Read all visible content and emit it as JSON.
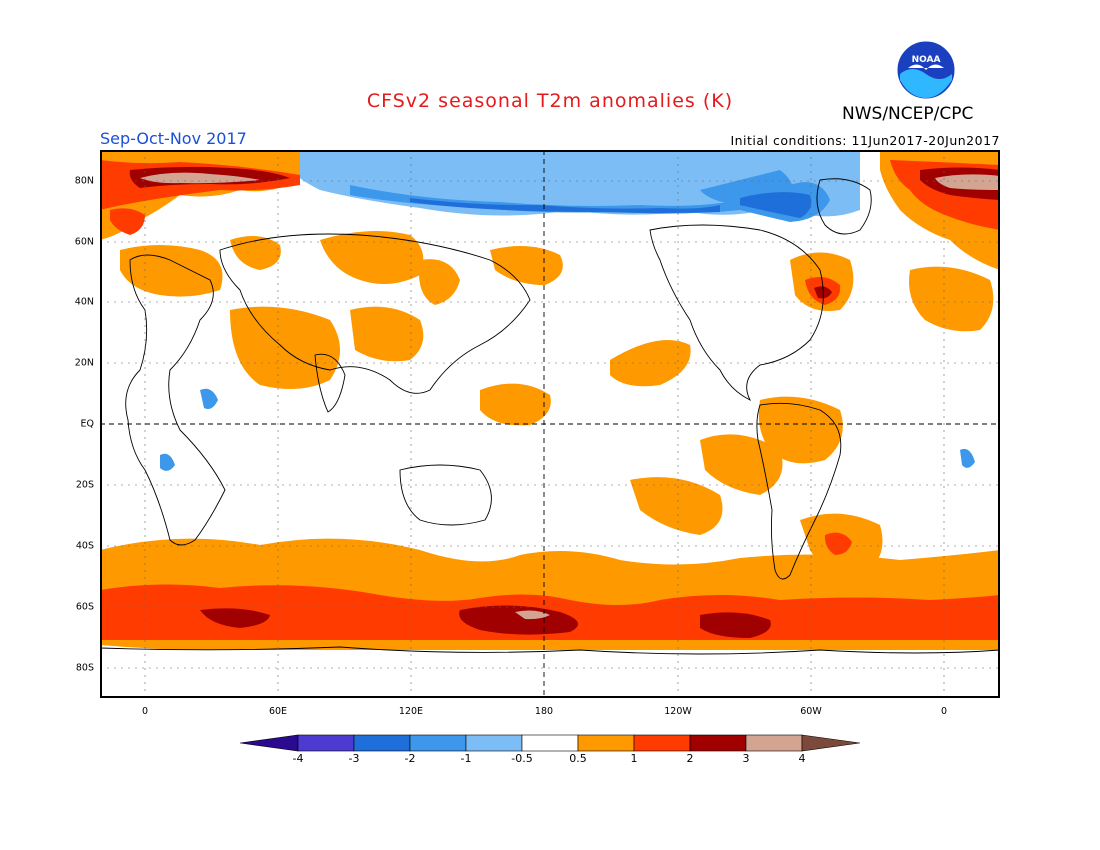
{
  "header": {
    "title": "CFSv2 seasonal T2m anomalies (K)",
    "org": "NWS/NCEP/CPC",
    "season": "Sep-Oct-Nov 2017",
    "initial_conditions": "Initial conditions: 11Jun2017-20Jun2017"
  },
  "logo": {
    "icon": "noaa-logo",
    "text": "NOAA"
  },
  "map": {
    "lat_labels": [
      "80N",
      "60N",
      "40N",
      "20N",
      "EQ",
      "20S",
      "40S",
      "60S",
      "80S"
    ],
    "lon_labels": [
      "0",
      "60E",
      "120E",
      "180",
      "120W",
      "60W",
      "0"
    ]
  },
  "colorbar": {
    "labels": [
      "-4",
      "-3",
      "-2",
      "-1",
      "-0.5",
      "0.5",
      "1",
      "2",
      "3",
      "4"
    ],
    "colors": [
      "#2a0b8f",
      "#4b3bd1",
      "#1f6fdb",
      "#3d97ea",
      "#7dbdf5",
      "#ffffff",
      "#ff9900",
      "#ff3b00",
      "#a00000",
      "#d4a493",
      "#7b4a3a"
    ]
  }
}
